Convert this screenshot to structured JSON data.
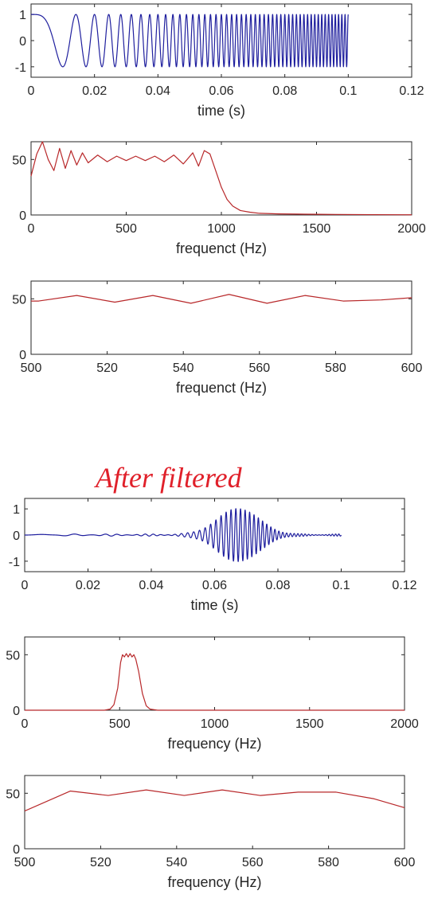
{
  "annotation": {
    "text": "After filtered",
    "color": "#e0202a"
  },
  "chart_data": [
    {
      "type": "line",
      "xlabel": "time (s)",
      "xlim": [
        0,
        0.12
      ],
      "ylim": [
        -1.4,
        1.4
      ],
      "xticks": [
        0,
        0.02,
        0.04,
        0.06,
        0.08,
        0.1,
        0.12
      ],
      "xtick_labels": [
        "0",
        "0.02",
        "0.04",
        "0.06",
        "0.08",
        "0.1",
        "0.12"
      ],
      "yticks": [
        1,
        0,
        -1
      ],
      "ytick_labels": [
        "1",
        "0",
        "-1"
      ],
      "grid": false,
      "series": [
        {
          "color": "#1f1f9e",
          "signal": "chirp",
          "x_range": [
            0,
            0.1
          ],
          "f_start_hz": 0,
          "f_end_hz": 1000,
          "amplitude": 1
        }
      ]
    },
    {
      "type": "line",
      "xlabel": "frequenct (Hz)",
      "xlim": [
        0,
        2000
      ],
      "ylim": [
        0,
        66
      ],
      "xticks": [
        0,
        500,
        1000,
        1500,
        2000
      ],
      "xtick_labels": [
        "0",
        "500",
        "1000",
        "1500",
        "2000"
      ],
      "yticks": [
        50,
        0
      ],
      "ytick_labels": [
        "50",
        "0"
      ],
      "grid": false,
      "series": [
        {
          "color": "#b8282a",
          "x": [
            0,
            30,
            60,
            90,
            120,
            150,
            180,
            210,
            240,
            270,
            300,
            350,
            400,
            450,
            500,
            550,
            600,
            650,
            700,
            750,
            800,
            850,
            880,
            910,
            940,
            970,
            1000,
            1030,
            1060,
            1100,
            1150,
            1200,
            1300,
            1400,
            1500,
            1600,
            1800,
            2000
          ],
          "y": [
            35,
            55,
            66,
            50,
            40,
            60,
            42,
            58,
            45,
            56,
            47,
            54,
            48,
            53,
            49,
            53,
            49,
            53,
            48,
            54,
            46,
            56,
            44,
            58,
            55,
            40,
            25,
            14,
            8,
            4,
            2.5,
            1.5,
            1,
            0.8,
            0.6,
            0.5,
            0.3,
            0.2
          ]
        }
      ]
    },
    {
      "type": "line",
      "xlabel": "frequenct (Hz)",
      "xlim": [
        500,
        600
      ],
      "ylim": [
        0,
        66
      ],
      "xticks": [
        500,
        520,
        540,
        560,
        580,
        600
      ],
      "xtick_labels": [
        "500",
        "520",
        "540",
        "560",
        "580",
        "600"
      ],
      "yticks": [
        50,
        0
      ],
      "ytick_labels": [
        "50",
        "0"
      ],
      "grid": false,
      "series": [
        {
          "color": "#b8282a",
          "x": [
            500,
            502,
            512,
            522,
            532,
            542,
            552,
            562,
            572,
            582,
            592,
            600
          ],
          "y": [
            48,
            48,
            53,
            47,
            53,
            46,
            54,
            46,
            53,
            48,
            49,
            51
          ]
        }
      ]
    },
    {
      "type": "line",
      "xlabel": "time (s)",
      "xlim": [
        0,
        0.12
      ],
      "ylim": [
        -1.4,
        1.4
      ],
      "xticks": [
        0,
        0.02,
        0.04,
        0.06,
        0.08,
        0.1,
        0.12
      ],
      "xtick_labels": [
        "0",
        "0.02",
        "0.04",
        "0.06",
        "0.08",
        "0.1",
        "0.12"
      ],
      "yticks": [
        1,
        0,
        -1
      ],
      "ytick_labels": [
        "1",
        "0",
        "-1"
      ],
      "grid": false,
      "series": [
        {
          "color": "#1f1f9e",
          "signal": "filtered-chirp",
          "x_range": [
            0,
            0.1
          ],
          "f_start_hz": 0,
          "f_end_hz": 1000,
          "peak_time_s": 0.0675,
          "peak_amplitude": 1,
          "baseline_ripple_amplitude": 0.04
        }
      ]
    },
    {
      "type": "line",
      "xlabel": "frequency (Hz)",
      "xlim": [
        0,
        2000
      ],
      "ylim": [
        0,
        66
      ],
      "xticks": [
        0,
        500,
        1000,
        1500,
        2000
      ],
      "xtick_labels": [
        "0",
        "500",
        "1000",
        "1500",
        "2000"
      ],
      "yticks": [
        50,
        0
      ],
      "ytick_labels": [
        "50",
        "0"
      ],
      "grid": false,
      "series": [
        {
          "color": "#b8282a",
          "x": [
            0,
            420,
            450,
            470,
            490,
            505,
            515,
            525,
            535,
            545,
            555,
            565,
            575,
            585,
            600,
            620,
            640,
            660,
            700,
            1000,
            1500,
            2000
          ],
          "y": [
            0,
            0,
            1,
            5,
            20,
            43,
            50,
            48,
            51,
            48,
            51,
            48,
            50,
            46,
            35,
            15,
            4,
            1,
            0,
            0,
            0,
            0
          ]
        }
      ]
    },
    {
      "type": "line",
      "xlabel": "frequency (Hz)",
      "xlim": [
        500,
        600
      ],
      "ylim": [
        0,
        66
      ],
      "xticks": [
        500,
        520,
        540,
        560,
        580,
        600
      ],
      "xtick_labels": [
        "500",
        "520",
        "540",
        "560",
        "580",
        "600"
      ],
      "yticks": [
        50,
        0
      ],
      "ytick_labels": [
        "50",
        "0"
      ],
      "grid": false,
      "series": [
        {
          "color": "#b8282a",
          "x": [
            500,
            512,
            522,
            532,
            542,
            552,
            562,
            572,
            582,
            592,
            600
          ],
          "y": [
            34,
            52,
            48,
            53,
            48,
            53,
            48,
            51,
            51,
            45,
            37
          ]
        }
      ]
    }
  ]
}
